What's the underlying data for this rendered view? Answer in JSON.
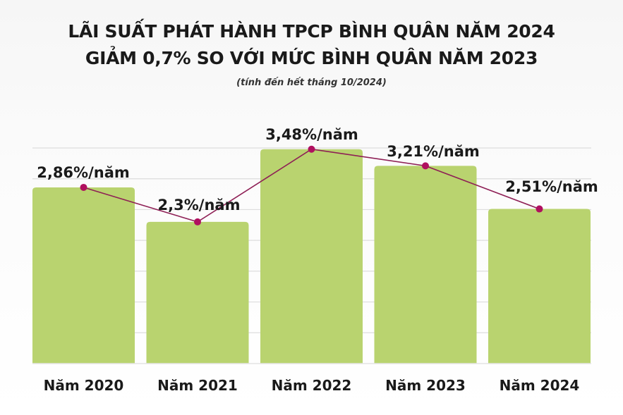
{
  "chart_data": {
    "type": "bar",
    "title": [
      "LÃI SUẤT PHÁT HÀNH TPCP BÌNH QUÂN NĂM 2024",
      "GIẢM 0,7% SO VỚI MỨC BÌNH QUÂN NĂM 2023"
    ],
    "subtitle": "(tính đến hết tháng 10/2024)",
    "categories": [
      "Năm 2020",
      "Năm 2021",
      "Năm 2022",
      "Năm 2023",
      "Năm 2024"
    ],
    "values": [
      2.86,
      2.3,
      3.48,
      3.21,
      2.51
    ],
    "data_labels": [
      "2,86%/năm",
      "2,3%/năm",
      "3,48%/năm",
      "3,21%/năm",
      "2,51%/năm"
    ],
    "overlay": "line with markers connecting bar tops",
    "ylim": [
      0,
      3.5
    ],
    "grid": true,
    "xlabel": "",
    "ylabel": "",
    "colors": {
      "bar": "#b9d36f",
      "line": "#8e1f55",
      "marker": "#b0105f",
      "grid": "#dddddd"
    }
  }
}
